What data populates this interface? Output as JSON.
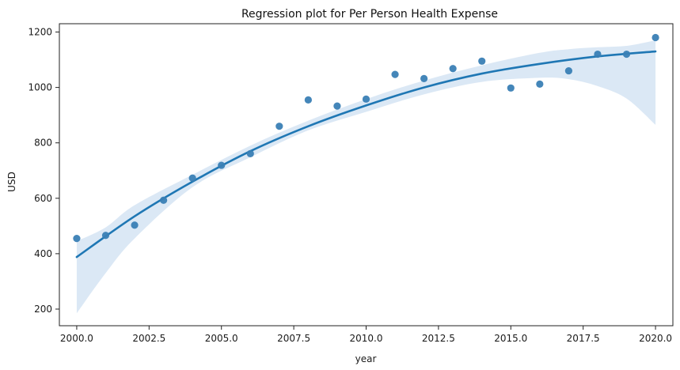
{
  "chart_data": {
    "type": "scatter",
    "title": "Regression plot for Per Person Health Expense",
    "xlabel": "year",
    "ylabel": "USD",
    "xlim": [
      1999.4,
      2020.6
    ],
    "ylim": [
      140,
      1230
    ],
    "xticks": [
      2000.0,
      2002.5,
      2005.0,
      2007.5,
      2010.0,
      2012.5,
      2015.0,
      2017.5,
      2020.0
    ],
    "xtick_labels": [
      "2000.0",
      "2002.5",
      "2005.0",
      "2007.5",
      "2010.0",
      "2012.5",
      "2015.0",
      "2017.5",
      "2020.0"
    ],
    "yticks": [
      200,
      400,
      600,
      800,
      1000,
      1200
    ],
    "ytick_labels": [
      "200",
      "400",
      "600",
      "800",
      "1000",
      "1200"
    ],
    "grid": false,
    "colors": {
      "points": "#3a7fb5",
      "line": "#1f77b4",
      "band": "#cfe0f1"
    },
    "series": [
      {
        "kind": "points",
        "x": [
          2000,
          2001,
          2002,
          2003,
          2004,
          2005,
          2006,
          2007,
          2008,
          2009,
          2010,
          2011,
          2012,
          2013,
          2014,
          2015,
          2016,
          2017,
          2018,
          2019,
          2020
        ],
        "y": [
          455,
          466,
          503,
          593,
          673,
          719,
          761,
          860,
          955,
          933,
          958,
          1047,
          1032,
          1068,
          1095,
          998,
          1012,
          1060,
          1120,
          1120,
          1180
        ]
      },
      {
        "kind": "fit",
        "x": [
          2000,
          2002,
          2004,
          2006,
          2008,
          2010,
          2012,
          2014,
          2016,
          2018,
          2020
        ],
        "y": [
          388,
          535,
          660,
          770,
          860,
          935,
          1000,
          1050,
          1085,
          1112,
          1130
        ]
      },
      {
        "kind": "ci-band",
        "x": [
          2000,
          2001,
          2002,
          2004,
          2006,
          2008,
          2010,
          2012,
          2014,
          2016,
          2017,
          2018,
          2019,
          2020
        ],
        "lower": [
          185,
          330,
          455,
          640,
          748,
          845,
          912,
          975,
          1020,
          1035,
          1030,
          1005,
          960,
          865
        ],
        "upper": [
          445,
          495,
          575,
          685,
          790,
          880,
          958,
          1025,
          1080,
          1125,
          1138,
          1145,
          1150,
          1170
        ]
      }
    ]
  }
}
